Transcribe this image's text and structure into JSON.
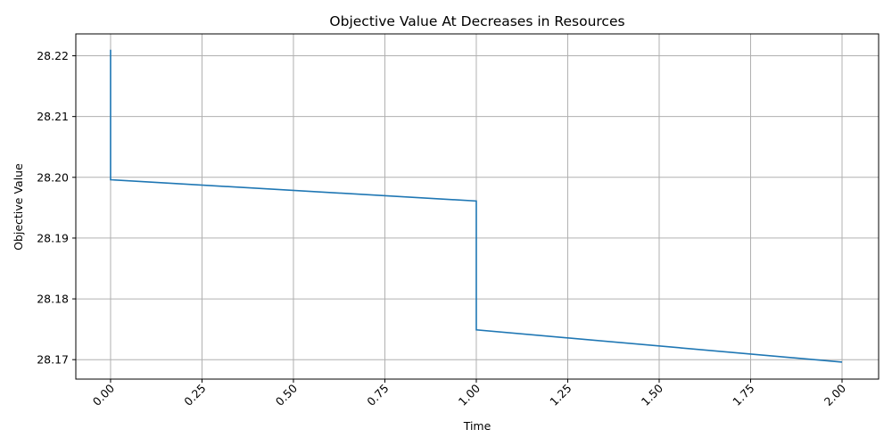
{
  "chart_data": {
    "type": "line",
    "title": "Objective Value At Decreases in Resources",
    "xlabel": "Time",
    "ylabel": "Objective Value",
    "xlim": [
      -0.095,
      2.1
    ],
    "ylim": [
      28.1668,
      28.2236
    ],
    "grid": true,
    "xticks": [
      0.0,
      0.25,
      0.5,
      0.75,
      1.0,
      1.25,
      1.5,
      1.75,
      2.0
    ],
    "xtick_labels": [
      "0.00",
      "0.25",
      "0.50",
      "0.75",
      "1.00",
      "1.25",
      "1.50",
      "1.75",
      "2.00"
    ],
    "yticks": [
      28.17,
      28.18,
      28.19,
      28.2,
      28.21,
      28.22
    ],
    "ytick_labels": [
      "28.17",
      "28.18",
      "28.19",
      "28.20",
      "28.21",
      "28.22"
    ],
    "series": [
      {
        "color": "#1f77b4",
        "x": [
          0.0,
          0.0,
          1.0,
          1.0,
          2.0
        ],
        "y": [
          28.221,
          28.1996,
          28.1961,
          28.1749,
          28.1696
        ]
      }
    ]
  }
}
